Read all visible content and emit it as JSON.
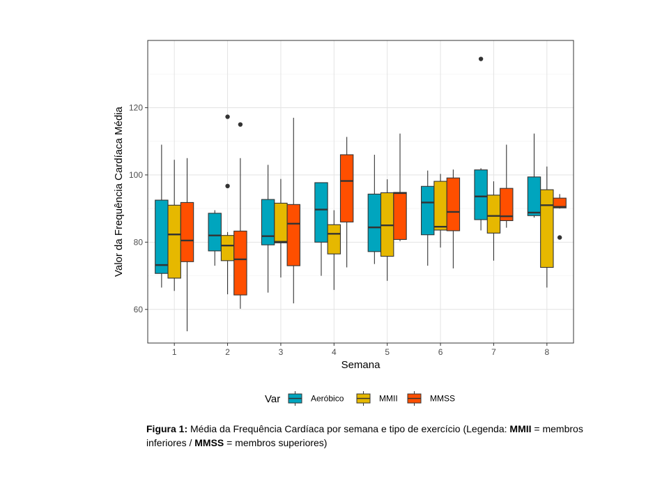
{
  "chart_data": {
    "type": "boxplot",
    "title": "",
    "xlabel": "Semana",
    "ylabel": "Valor da Frequência Cardíaca Média",
    "categories": [
      "1",
      "2",
      "3",
      "4",
      "5",
      "6",
      "7",
      "8"
    ],
    "ylim": [
      50,
      140
    ],
    "yticks": [
      60,
      80,
      100,
      120
    ],
    "grid": true,
    "legend": {
      "title": "Var",
      "position": "bottom"
    },
    "series": [
      {
        "name": "Aeróbico",
        "color": "#00A5BE",
        "boxes": [
          {
            "min": 66.5,
            "q1": 70.7,
            "median": 73.2,
            "q3": 92.5,
            "max": 109,
            "outliers": []
          },
          {
            "min": 73,
            "q1": 77.4,
            "median": 82,
            "q3": 88.6,
            "max": 89.5,
            "outliers": []
          },
          {
            "min": 65,
            "q1": 79.2,
            "median": 81.8,
            "q3": 92.7,
            "max": 103,
            "outliers": []
          },
          {
            "min": 70,
            "q1": 80,
            "median": 89.7,
            "q3": 97.7,
            "max": 97.7,
            "outliers": []
          },
          {
            "min": 73.5,
            "q1": 77.2,
            "median": 84.4,
            "q3": 94.3,
            "max": 106,
            "outliers": []
          },
          {
            "min": 73,
            "q1": 82.2,
            "median": 91.8,
            "q3": 96.6,
            "max": 101.3,
            "outliers": []
          },
          {
            "min": 83.5,
            "q1": 86.7,
            "median": 93.6,
            "q3": 101.5,
            "max": 102,
            "outliers": [
              134.5
            ]
          },
          {
            "min": 87.3,
            "q1": 87.9,
            "median": 88.8,
            "q3": 99.4,
            "max": 112.3,
            "outliers": []
          }
        ]
      },
      {
        "name": "MMII",
        "color": "#E6B800",
        "boxes": [
          {
            "min": 65.5,
            "q1": 69.3,
            "median": 82.3,
            "q3": 91,
            "max": 104.5,
            "outliers": []
          },
          {
            "min": 64.5,
            "q1": 74.5,
            "median": 79,
            "q3": 82,
            "max": 83,
            "outliers": [
              96.7,
              117.3
            ]
          },
          {
            "min": 69.5,
            "q1": 79.8,
            "median": 80.1,
            "q3": 91.6,
            "max": 98.8,
            "outliers": []
          },
          {
            "min": 65.8,
            "q1": 76.5,
            "median": 82.5,
            "q3": 85.2,
            "max": 89.5,
            "outliers": []
          },
          {
            "min": 68.5,
            "q1": 75.8,
            "median": 85,
            "q3": 94.7,
            "max": 98.7,
            "outliers": []
          },
          {
            "min": 78.4,
            "q1": 83.6,
            "median": 84.6,
            "q3": 98.1,
            "max": 100.3,
            "outliers": []
          },
          {
            "min": 74.5,
            "q1": 82.7,
            "median": 87.8,
            "q3": 94,
            "max": 98.1,
            "outliers": []
          },
          {
            "min": 66.5,
            "q1": 72.5,
            "median": 91,
            "q3": 95.6,
            "max": 102.5,
            "outliers": []
          }
        ]
      },
      {
        "name": "MMSS",
        "color": "#FF4F00",
        "boxes": [
          {
            "min": 53.5,
            "q1": 74.2,
            "median": 80.5,
            "q3": 91.8,
            "max": 105,
            "outliers": []
          },
          {
            "min": 60.2,
            "q1": 64.3,
            "median": 74.9,
            "q3": 83.3,
            "max": 105,
            "outliers": [
              115
            ]
          },
          {
            "min": 61.8,
            "q1": 73,
            "median": 85.5,
            "q3": 91.2,
            "max": 117,
            "outliers": []
          },
          {
            "min": 72.5,
            "q1": 86,
            "median": 98.2,
            "q3": 106,
            "max": 111.3,
            "outliers": []
          },
          {
            "min": 80.3,
            "q1": 80.8,
            "median": 94.6,
            "q3": 94.8,
            "max": 112.3,
            "outliers": []
          },
          {
            "min": 72.2,
            "q1": 83.4,
            "median": 89,
            "q3": 99.1,
            "max": 101.6,
            "outliers": []
          },
          {
            "min": 84.3,
            "q1": 86.4,
            "median": 87.7,
            "q3": 96,
            "max": 109,
            "outliers": []
          },
          {
            "min": 90,
            "q1": 90.2,
            "median": 90.5,
            "q3": 93.1,
            "max": 94.3,
            "outliers": [
              81.4
            ]
          }
        ]
      }
    ]
  },
  "caption": {
    "label": "Figura 1:",
    "text1": " Média da Frequência Cardíaca por semana e tipo de exercício (Legenda: ",
    "mmii": "MMII",
    "text2": " = membros inferiores / ",
    "mmss": "MMSS",
    "text3": " = membros superiores)"
  }
}
